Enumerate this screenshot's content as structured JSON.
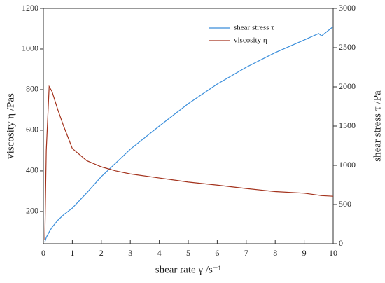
{
  "chart_data": {
    "type": "line",
    "x_label": "shear rate γ  /s⁻¹",
    "y_label": "viscosity η  /Pas",
    "y2_label": "shear stress τ  /Pa",
    "x": [
      0.05,
      0.1,
      0.2,
      0.3,
      0.5,
      0.7,
      1,
      1.5,
      2,
      2.5,
      3,
      4,
      5,
      6,
      7,
      8,
      9,
      9.5,
      9.6,
      10
    ],
    "series": [
      {
        "name": "shear stress τ",
        "color": "#3a8edb",
        "axis": "y2",
        "values": [
          20,
          80,
          150,
          210,
          300,
          370,
          455,
          650,
          857,
          1030,
          1205,
          1500,
          1786,
          2036,
          2250,
          2437,
          2598,
          2680,
          2650,
          2768
        ]
      },
      {
        "name": "viscosity η",
        "color": "#a3321c",
        "axis": "y",
        "values": [
          60,
          500,
          815,
          790,
          700,
          620,
          510,
          450,
          420,
          400,
          385,
          365,
          345,
          330,
          313,
          298,
          290,
          280,
          278,
          275
        ]
      }
    ],
    "xlim": [
      0,
      10
    ],
    "xticks": [
      0,
      1,
      2,
      3,
      4,
      5,
      6,
      7,
      8,
      9,
      10
    ],
    "ylim": [
      41,
      1200
    ],
    "yticks": [
      200,
      400,
      600,
      800,
      1000,
      1200
    ],
    "y2lim": [
      0,
      3000
    ],
    "y2ticks": [
      0,
      500,
      1000,
      1500,
      2000,
      2500,
      3000
    ],
    "legend": "upper right",
    "grid": false
  }
}
